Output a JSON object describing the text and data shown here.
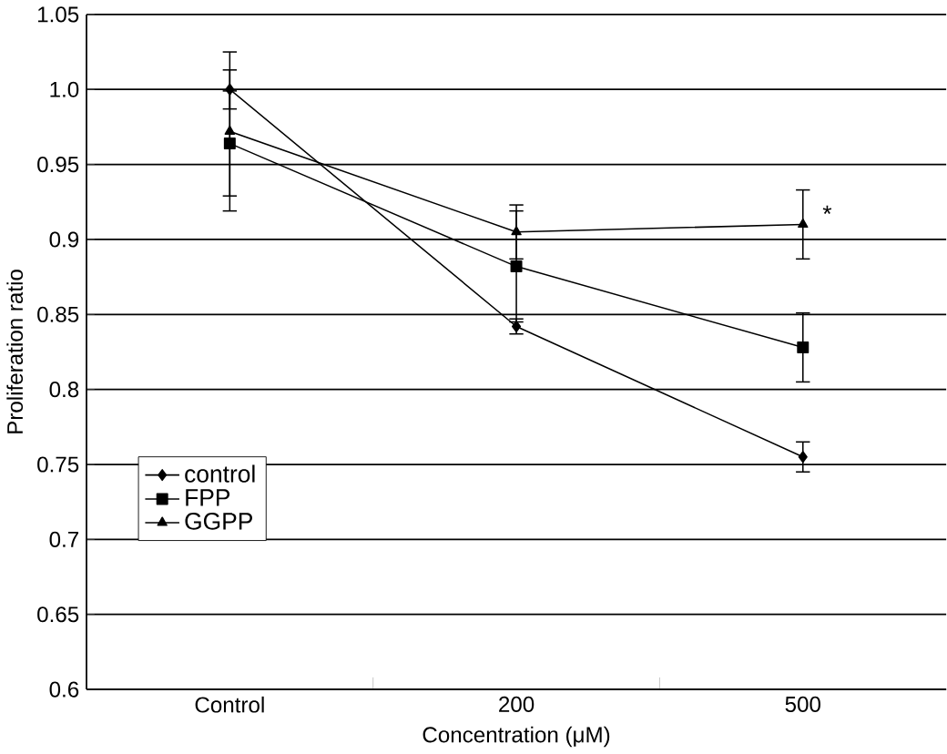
{
  "chart_data": {
    "type": "line",
    "xlabel": "Concentration (μM)",
    "ylabel": "Proliferation ratio",
    "categories": [
      "Control",
      "200",
      "500"
    ],
    "series": [
      {
        "name": "control",
        "color": "#000000",
        "marker": "diamond",
        "values": [
          1.0,
          0.842,
          0.755
        ],
        "errors": [
          0.013,
          0.005,
          0.01
        ]
      },
      {
        "name": "FPP",
        "color": "#000000",
        "marker": "square",
        "values": [
          0.964,
          0.882,
          0.828
        ],
        "errors": [
          0.035,
          0.037,
          0.023
        ]
      },
      {
        "name": "GGPP",
        "color": "#000000",
        "marker": "triangle",
        "values": [
          0.972,
          0.905,
          0.91
        ],
        "errors": [
          0.053,
          0.018,
          0.023
        ]
      }
    ],
    "ylim": [
      0.6,
      1.05
    ],
    "yticks": [
      0.6,
      0.65,
      0.7,
      0.75,
      0.8,
      0.85,
      0.9,
      0.95,
      {
        "value": 1.0,
        "label": "1.0"
      },
      1.05
    ],
    "grid": "y",
    "legend": "left",
    "line_style": "solid",
    "annotations": [
      {
        "text": "*",
        "x": "500",
        "y": 0.91
      }
    ]
  }
}
